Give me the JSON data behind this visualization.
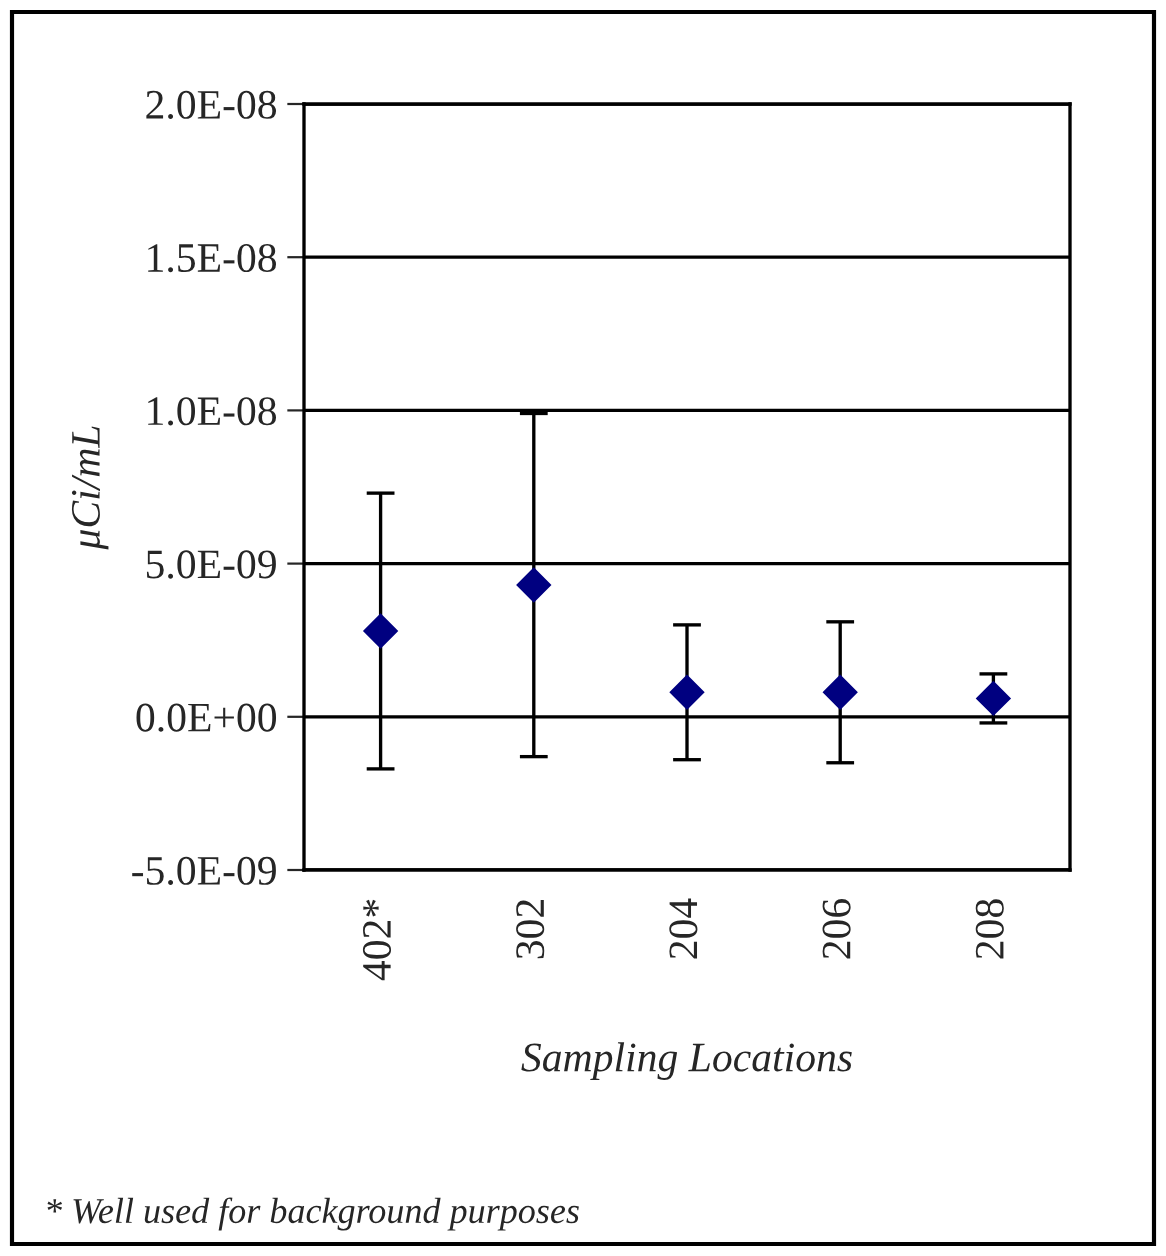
{
  "chart_data": {
    "type": "scatter",
    "xlabel": "Sampling Locations",
    "ylabel": "μCi/mL",
    "categories": [
      "402*",
      "302",
      "204",
      "206",
      "208"
    ],
    "series": [
      {
        "color": "#000080",
        "values": [
          2.8e-09,
          4.3e-09,
          8e-10,
          8e-10,
          6e-10
        ],
        "errors": [
          4.5e-09,
          5.6e-09,
          2.2e-09,
          2.3e-09,
          8e-10
        ]
      }
    ],
    "marker": "diamond",
    "ylim": [
      -5e-09,
      2e-08
    ],
    "yticks": [
      {
        "value": -5e-09,
        "label": "-5.0E-09"
      },
      {
        "value": 0,
        "label": "0.0E+00"
      },
      {
        "value": 5e-09,
        "label": "5.0E-09"
      },
      {
        "value": 1e-08,
        "label": "1.0E-08"
      },
      {
        "value": 1.5e-08,
        "label": "1.5E-08"
      },
      {
        "value": 2e-08,
        "label": "2.0E-08"
      }
    ],
    "grid": "y",
    "annotations": [
      "* Well used for background purposes"
    ]
  }
}
